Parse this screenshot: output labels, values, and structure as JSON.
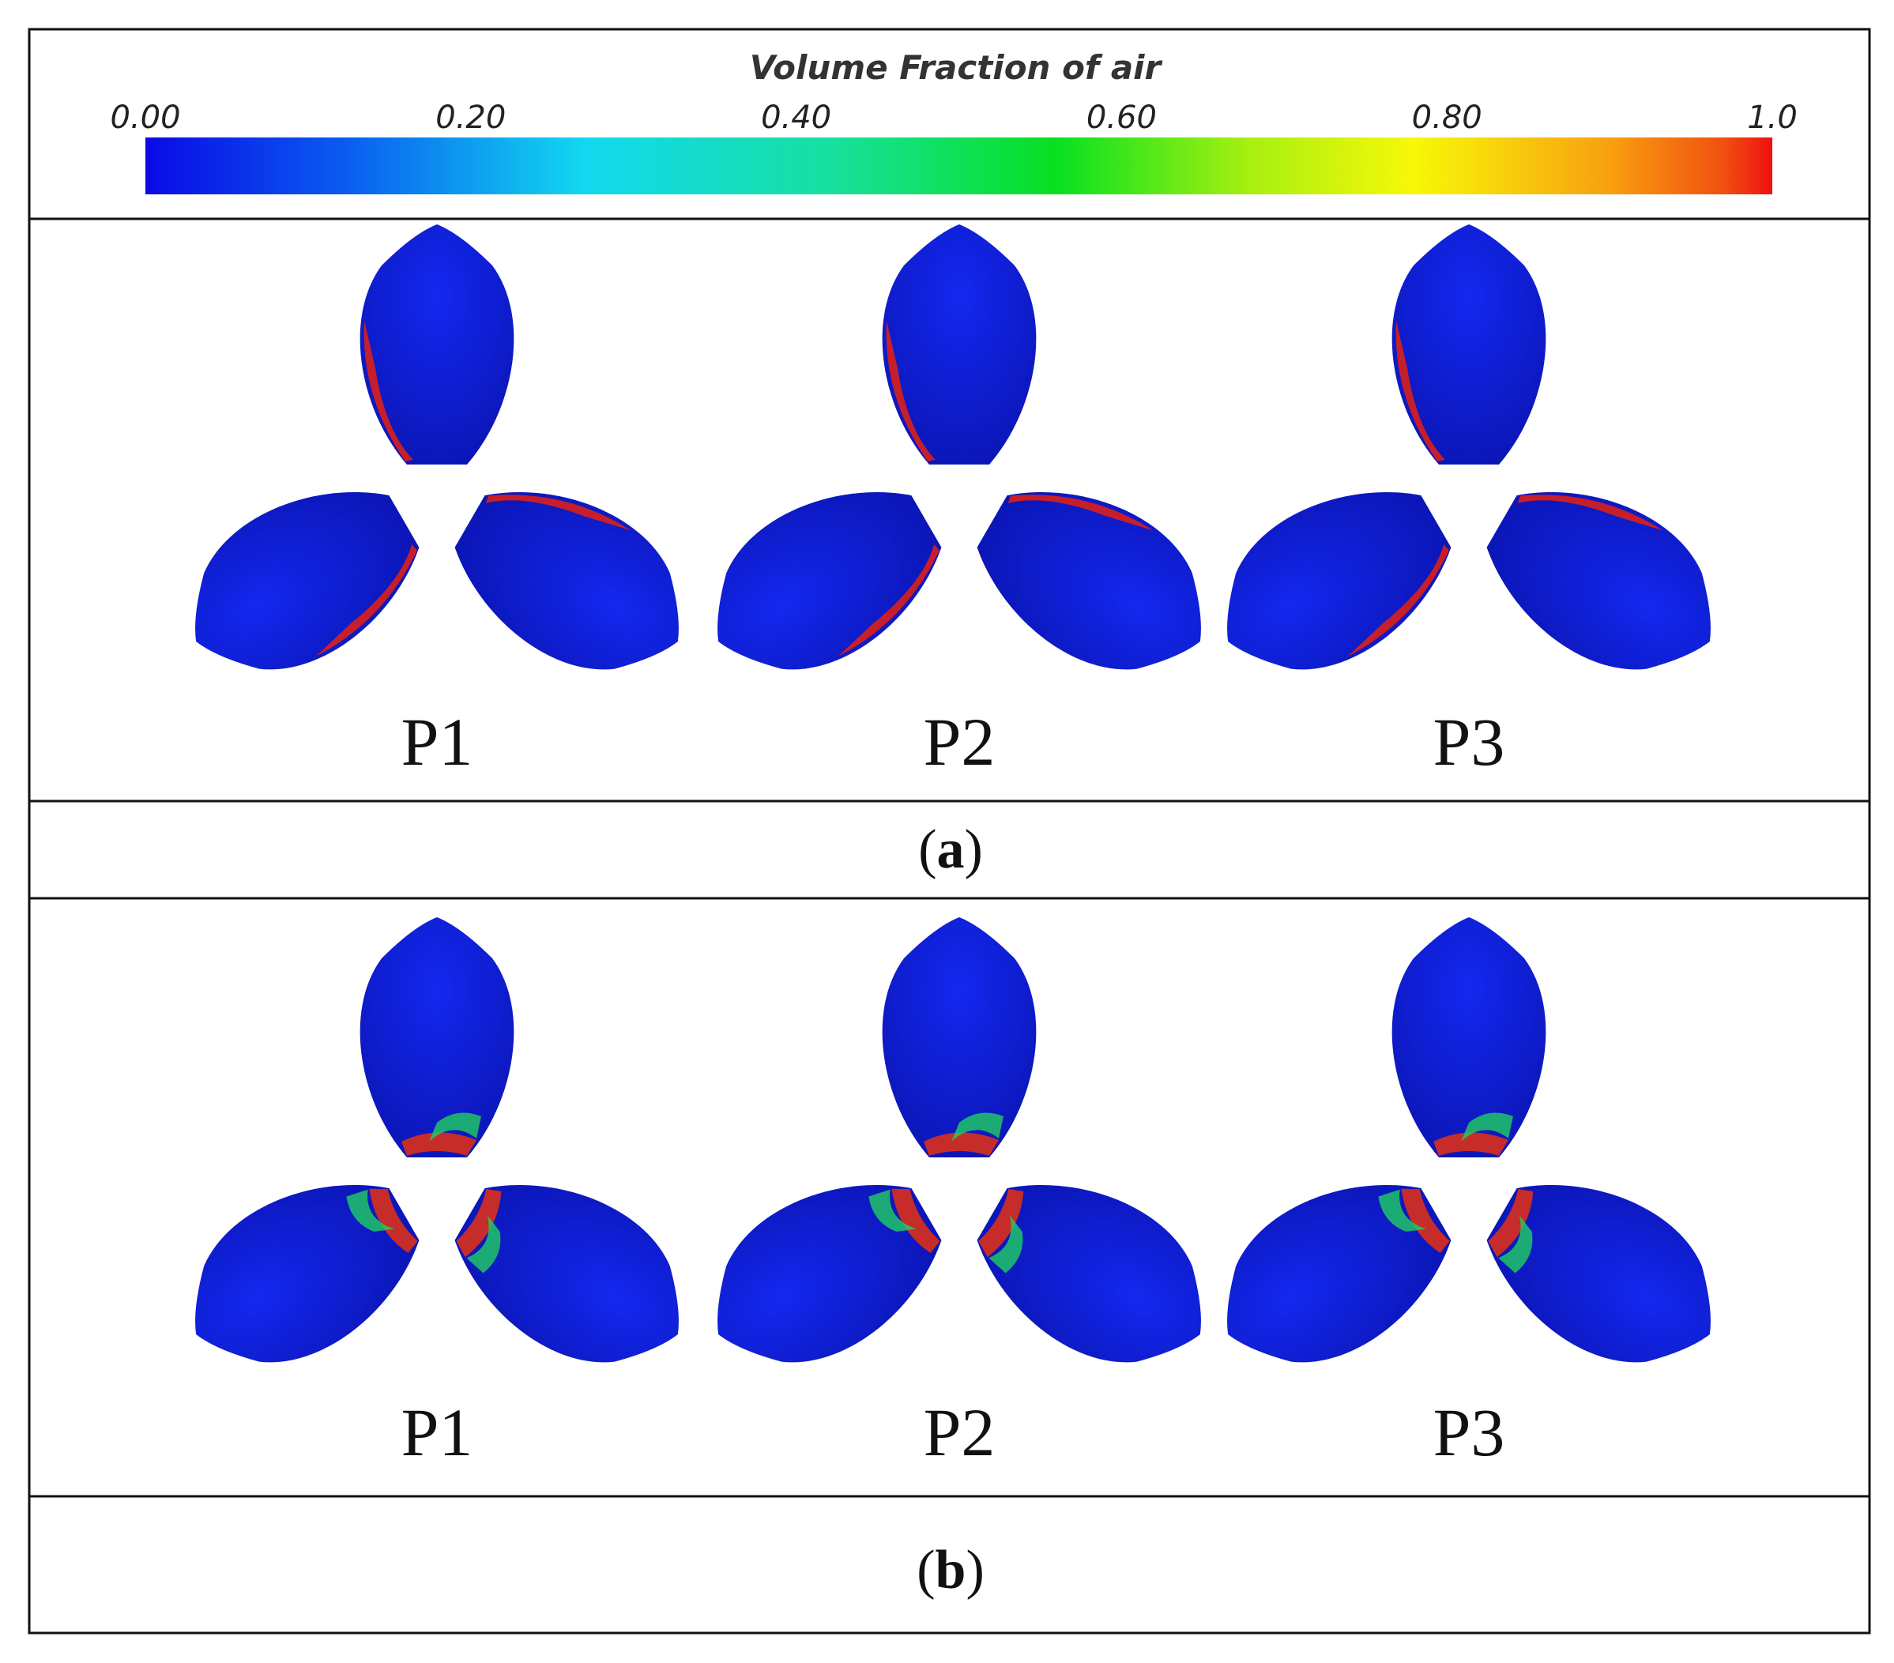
{
  "colorbar": {
    "title": "Volume Fraction of air",
    "ticks": [
      "0.00",
      "0.20",
      "0.40",
      "0.60",
      "0.80",
      "1.0"
    ]
  },
  "panels": [
    {
      "labels": [
        "P1",
        "P2",
        "P3"
      ],
      "caption": {
        "open": "(",
        "label": "a",
        "close": ")"
      }
    },
    {
      "labels": [
        "P1",
        "P2",
        "P3"
      ],
      "caption": {
        "open": "(",
        "label": "b",
        "close": ")"
      }
    }
  ]
}
